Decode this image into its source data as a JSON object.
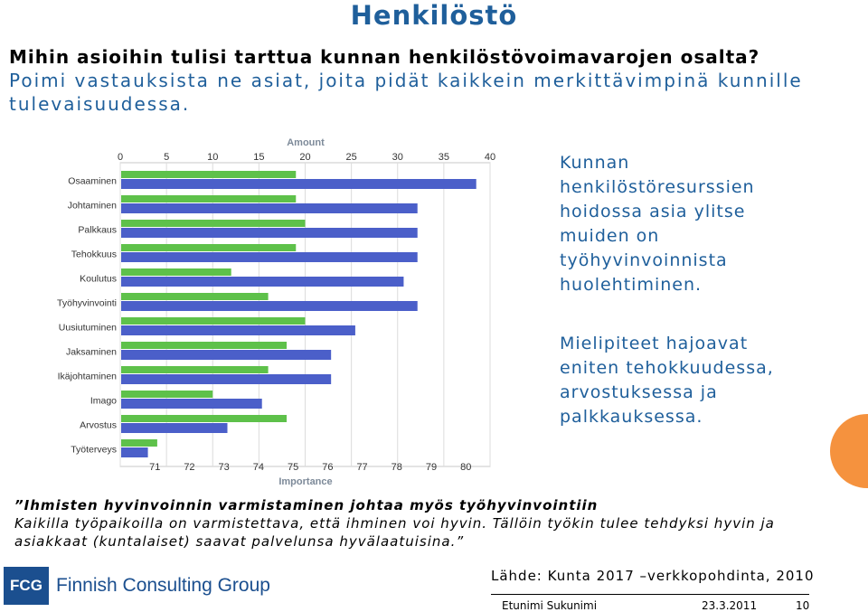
{
  "slide": {
    "title": "Henkilöstö",
    "question_line1": "Mihin asioihin tulisi tarttua kunnan henkilöstövoimavarojen osalta?",
    "question_line2": "Poimi vastauksista ne asiat, joita pidät kaikkein merkittävimpinä kunnille tulevaisuudessa.",
    "note1": "Kunnan henkilöstöresurssien hoidossa asia ylitse muiden on työhyvinvoinnista huolehtiminen.",
    "note2": "Mielipiteet hajoavat eniten tehokkuudessa, arvostuksessa ja palkkauksessa.",
    "quote_line1": "”Ihmisten hyvinvoinnin varmistaminen johtaa myös työhyvinvointiin",
    "quote_line2": "Kaikilla työpaikoilla on varmistettava, että ihminen voi hyvin. Tällöin työkin tulee tehdyksi hyvin ja asiakkaat (kuntalaiset) saavat palvelunsa hyvälaatuisina.”",
    "logo_short": "FCG",
    "logo_name": "Finnish Consulting Group",
    "source": "Lähde: Kunta 2017 –verkkopohdinta, 2010",
    "footer_name": "Etunimi Sukunimi",
    "footer_date": "23.3.2011",
    "footer_page": "10"
  },
  "colors": {
    "title": "#1f5f9b",
    "amount_bar": "#5ec14a",
    "importance_bar": "#4b5fc9",
    "accent": "#f5923e"
  },
  "chart_data": {
    "type": "bar",
    "orientation": "horizontal",
    "categories": [
      "Osaaminen",
      "Johtaminen",
      "Palkkaus",
      "Tehokkuus",
      "Koulutus",
      "Työhyvinvointi",
      "Uusiutuminen",
      "Jaksaminen",
      "Ikäjohtaminen",
      "Imago",
      "Arvostus",
      "Työterveys"
    ],
    "series": [
      {
        "name": "Amount",
        "axis": "top",
        "values": [
          19,
          19,
          20,
          19,
          12,
          16,
          20,
          18,
          16,
          10,
          18,
          4
        ]
      },
      {
        "name": "Importance",
        "axis": "bottom",
        "values": [
          80.3,
          78.6,
          78.6,
          78.6,
          78.2,
          78.6,
          76.8,
          76.1,
          76.1,
          74.1,
          73.1,
          70.8
        ]
      }
    ],
    "top_axis": {
      "label": "Amount",
      "ticks": [
        0,
        5,
        10,
        15,
        20,
        25,
        30,
        35,
        40
      ],
      "range": [
        0,
        40
      ]
    },
    "bottom_axis": {
      "label": "Importance",
      "ticks": [
        71,
        72,
        73,
        74,
        75,
        76,
        77,
        78,
        79,
        80
      ],
      "range": [
        70,
        80.7
      ]
    },
    "grid": true
  }
}
